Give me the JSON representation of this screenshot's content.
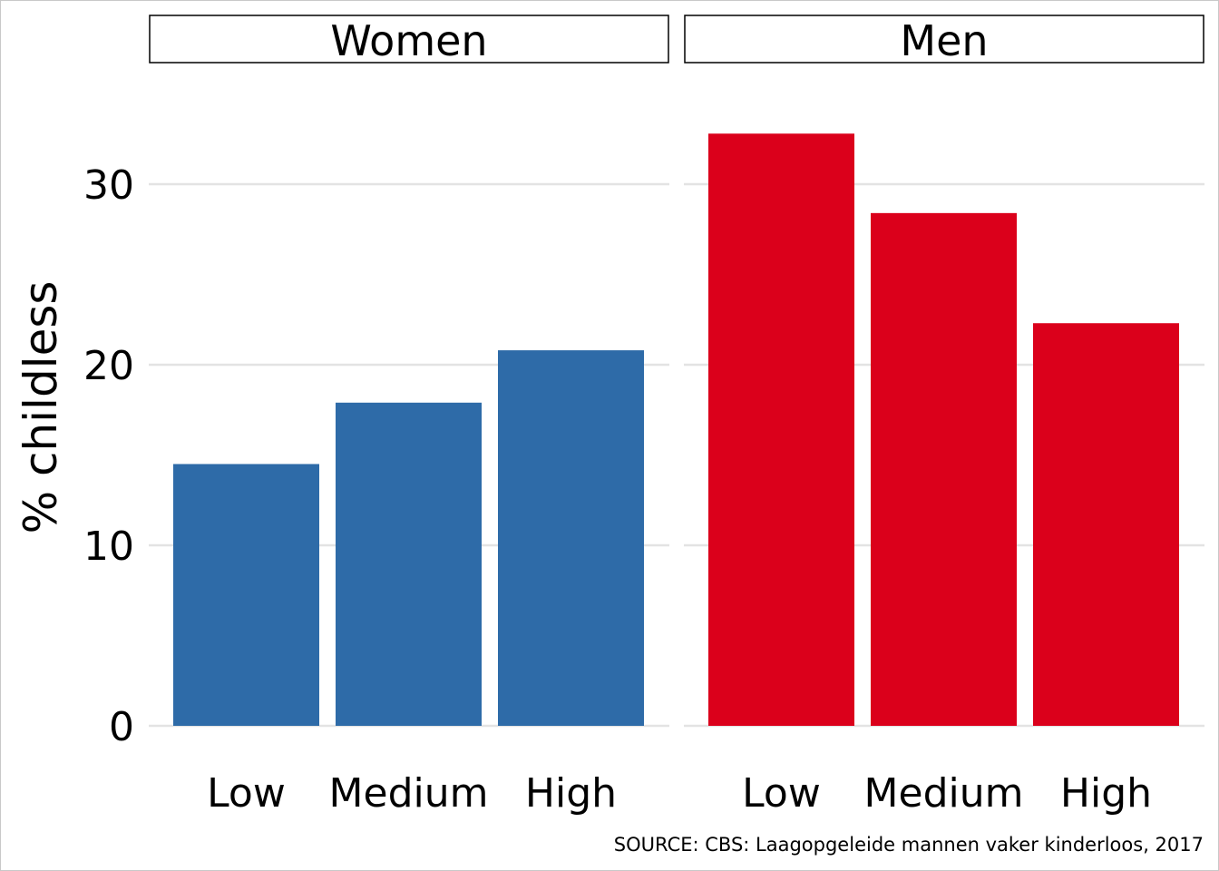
{
  "chart_data": {
    "type": "bar",
    "ylabel": "% childless",
    "xlabel": "",
    "ylim": [
      0,
      34
    ],
    "yticks": [
      0,
      10,
      20,
      30
    ],
    "grid": "horizontal",
    "caption": "SOURCE: CBS: Laagopgeleide mannen vaker kinderloos, 2017",
    "panels": [
      {
        "title": "Women",
        "color": "#2E6BA8",
        "categories": [
          "Low",
          "Medium",
          "High"
        ],
        "values": [
          14.5,
          17.9,
          20.8
        ]
      },
      {
        "title": "Men",
        "color": "#DB001B",
        "categories": [
          "Low",
          "Medium",
          "High"
        ],
        "values": [
          32.8,
          28.4,
          22.3
        ]
      }
    ]
  }
}
